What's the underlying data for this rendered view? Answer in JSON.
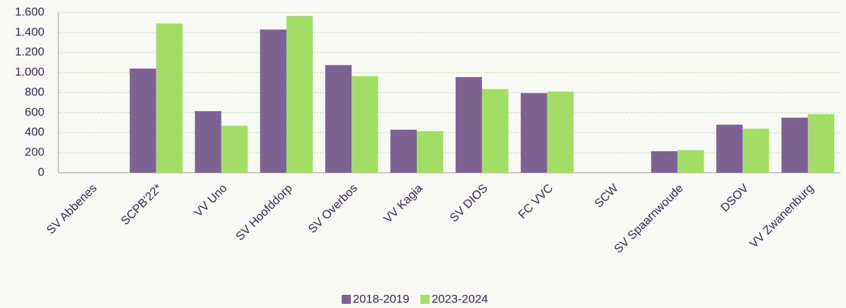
{
  "chart_data": {
    "type": "bar",
    "categories": [
      "SV Abbenes",
      "SCPB'22*",
      "VV Uno",
      "SV Hoofddorp",
      "SV Overbos",
      "VV Kagia",
      "SV DIOS",
      "FC VVC",
      "SCW",
      "SV Spaarnwoude",
      "DSOV",
      "VV Zwanenburg"
    ],
    "series": [
      {
        "name": "2018-2019",
        "color": "#7d6391",
        "values": [
          0,
          1040,
          615,
          1430,
          1075,
          430,
          955,
          795,
          0,
          215,
          480,
          550
        ]
      },
      {
        "name": "2023-2024",
        "color": "#a2de66",
        "values": [
          0,
          1490,
          470,
          1565,
          965,
          415,
          835,
          810,
          0,
          225,
          440,
          585
        ]
      }
    ],
    "ylim": [
      0,
      1600
    ],
    "yticks": [
      0,
      200,
      400,
      600,
      800,
      {
        "value": 1000,
        "label": "1.000"
      },
      {
        "value": 1200,
        "label": "1.200"
      },
      {
        "value": 1400,
        "label": "1.400"
      },
      {
        "value": 1600,
        "label": "1.600"
      }
    ],
    "grid": true,
    "legend": "bottom"
  }
}
